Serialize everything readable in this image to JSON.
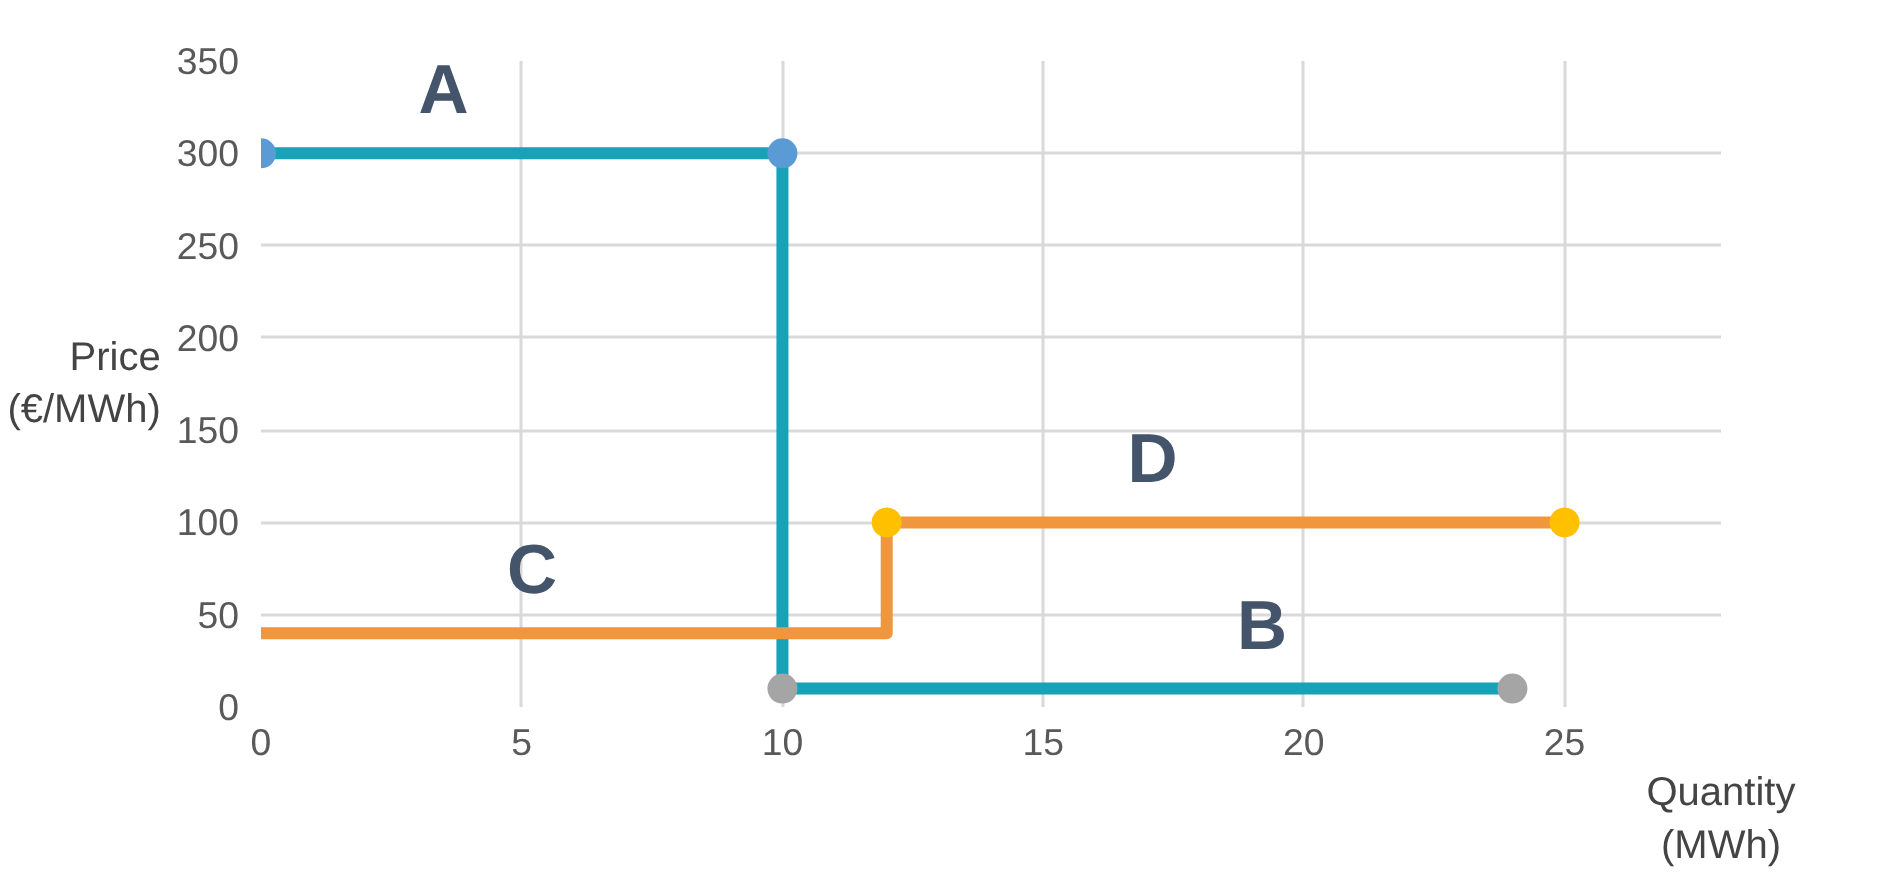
{
  "chart_data": {
    "type": "line",
    "xlabel": "Quantity\n(MWh)",
    "ylabel": "Price\n(€/MWh)",
    "xlim": [
      0,
      28
    ],
    "xticks": [
      0,
      5,
      10,
      15,
      20,
      25
    ],
    "ylim": [
      0,
      350
    ],
    "yticks": [
      0,
      50,
      100,
      150,
      200,
      250,
      300,
      350
    ],
    "grid": true,
    "line_style": "solid",
    "series": [
      {
        "color": "#17a2b8",
        "x": [
          0,
          10,
          10,
          24
        ],
        "values": [
          300,
          300,
          10,
          10
        ]
      },
      {
        "color": "#f0963c",
        "x": [
          0,
          12,
          12,
          25
        ],
        "values": [
          40,
          40,
          100,
          100
        ]
      },
      {
        "type": "scatter",
        "marker": "circle",
        "color": "#5b9bd5",
        "x": [
          0,
          10
        ],
        "values": [
          300,
          300
        ]
      },
      {
        "type": "scatter",
        "marker": "circle",
        "color": "#a5a5a5",
        "x": [
          10,
          24
        ],
        "values": [
          10,
          10
        ]
      },
      {
        "type": "scatter",
        "marker": "circle",
        "color": "#ffc000",
        "x": [
          12,
          25
        ],
        "values": [
          100,
          100
        ]
      }
    ],
    "annotations": [
      {
        "text": "A",
        "x": 3.5,
        "y": 300
      },
      {
        "text": "B",
        "x": 19.2,
        "y": 10
      },
      {
        "text": "C",
        "x": 5.2,
        "y": 40
      },
      {
        "text": "D",
        "x": 17.1,
        "y": 100
      }
    ]
  }
}
